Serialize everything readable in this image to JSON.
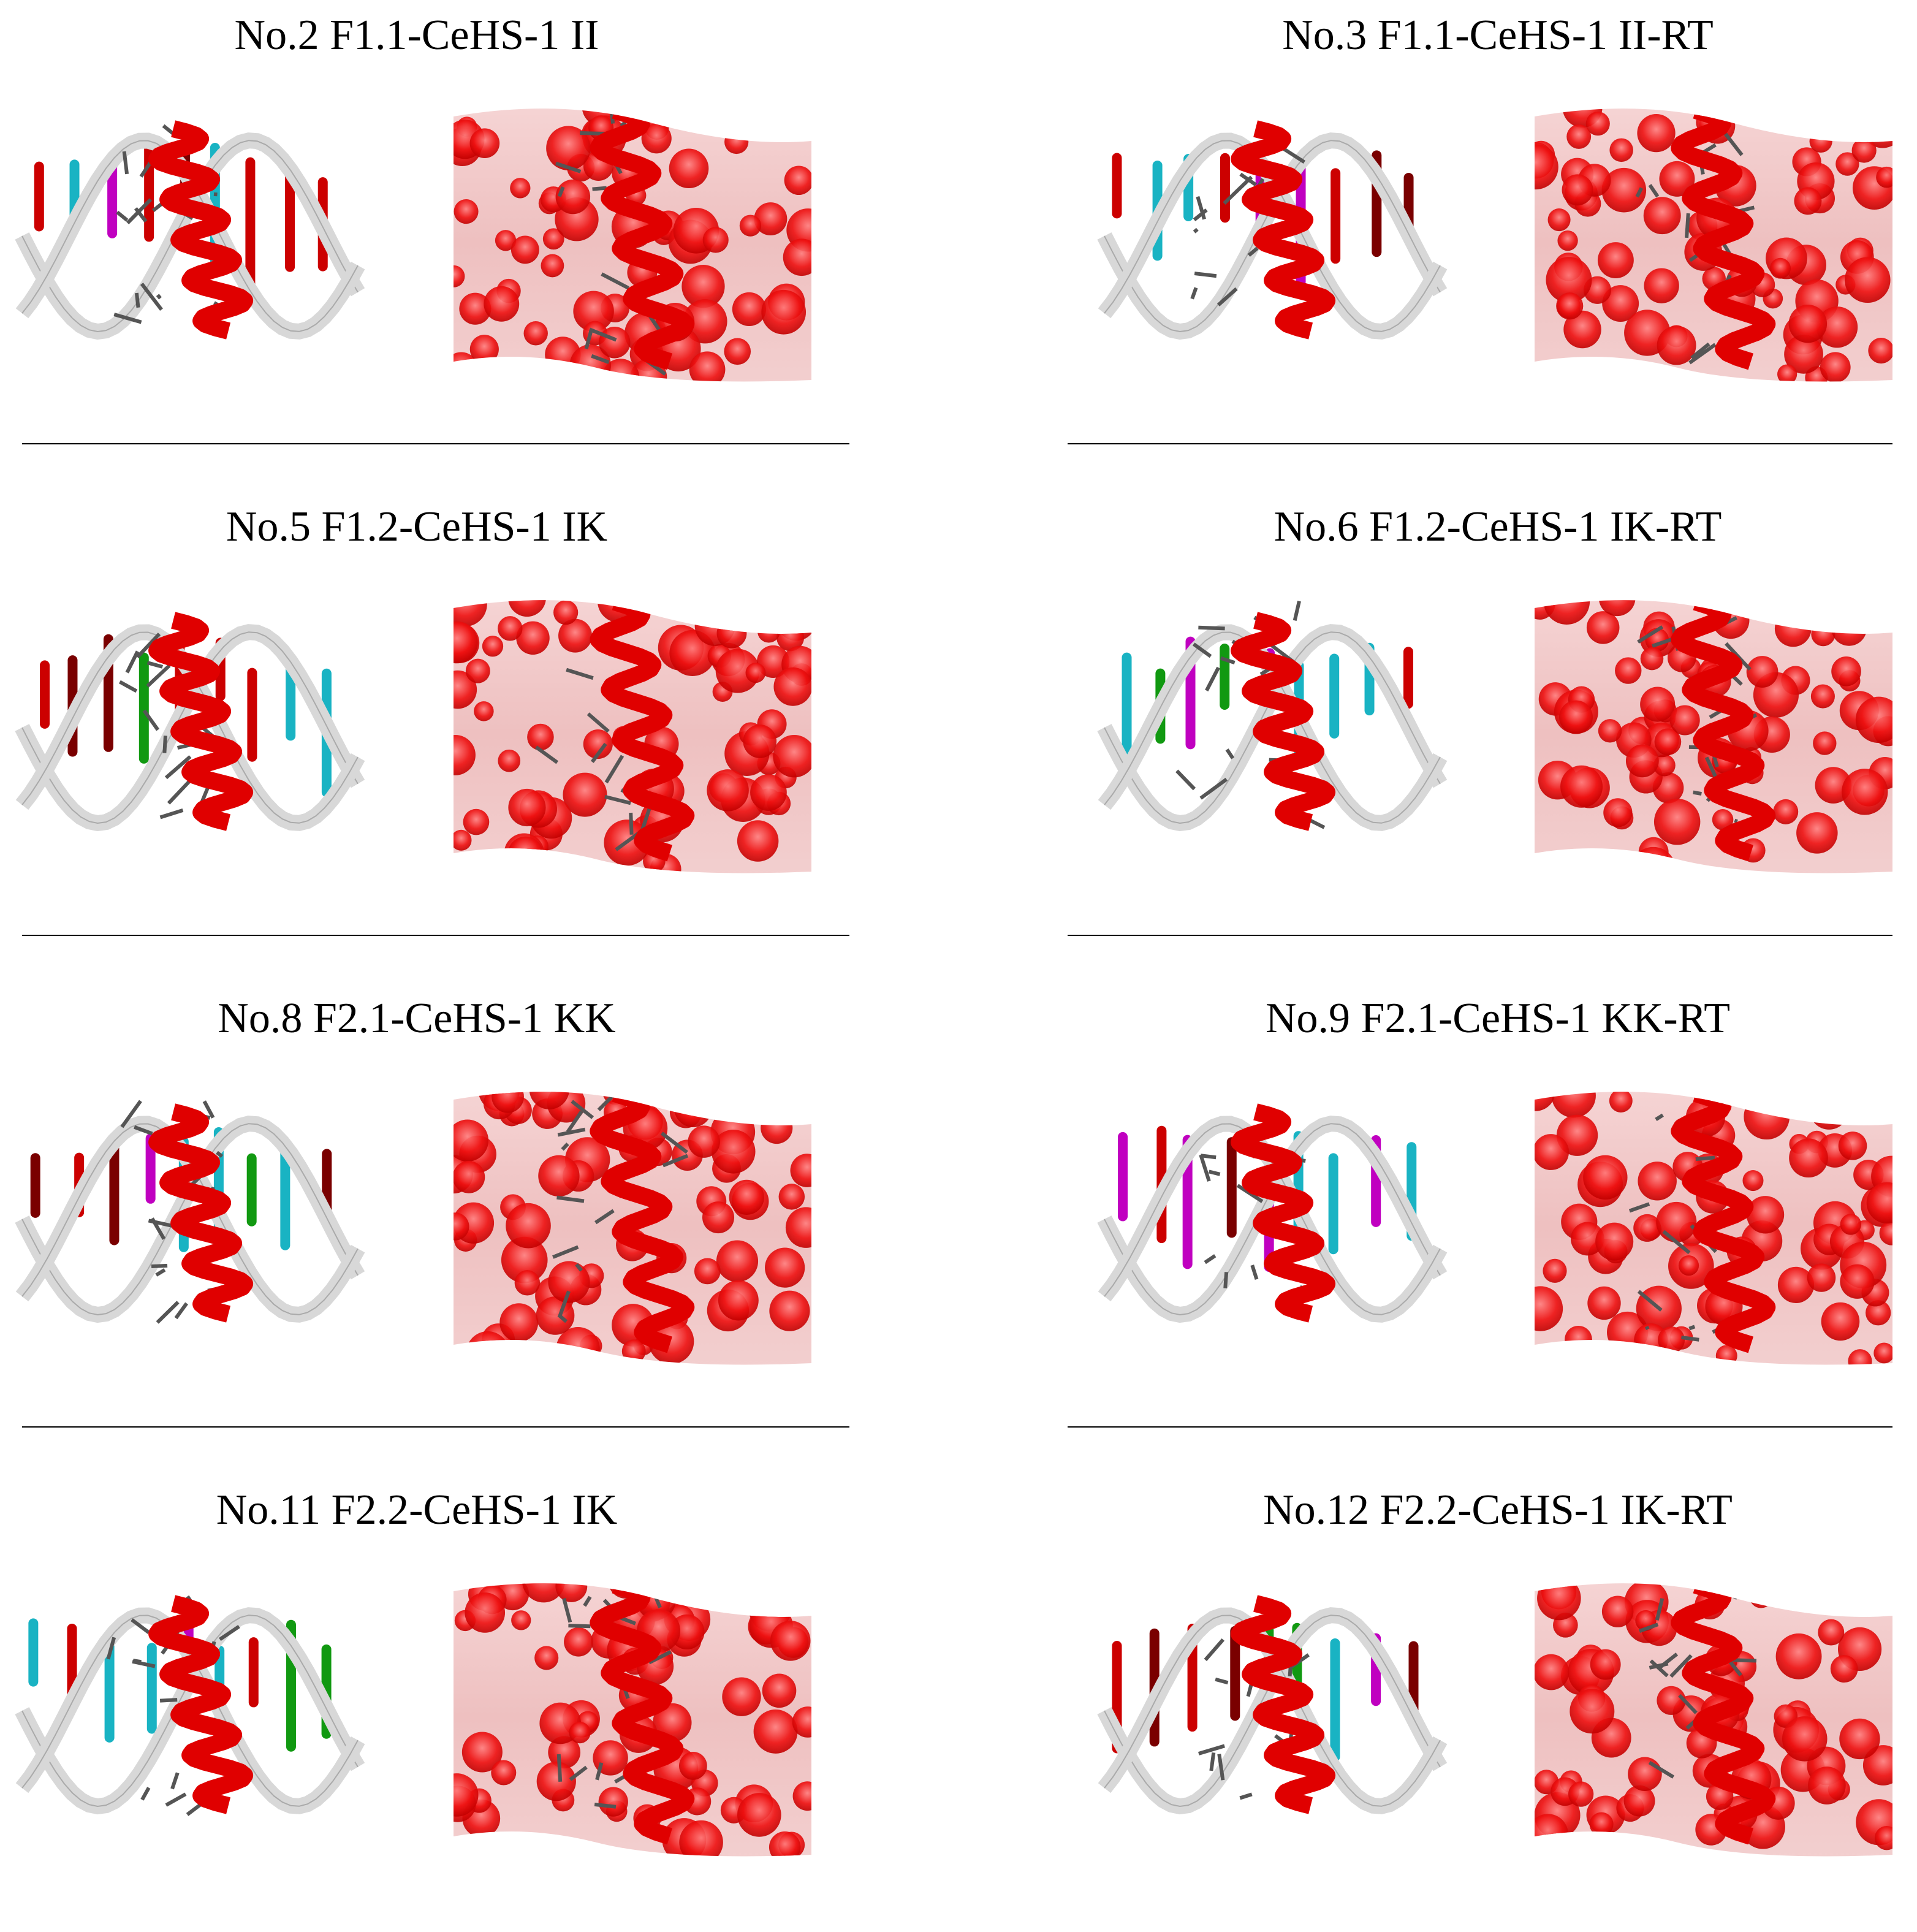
{
  "panels": [
    {
      "title": "No.2 F1.1-CeHS-1 II"
    },
    {
      "title": "No.3 F1.1-CeHS-1 II-RT"
    },
    {
      "title": "No.5 F1.2-CeHS-1 IK"
    },
    {
      "title": "No.6 F1.2-CeHS-1 IK-RT"
    },
    {
      "title": "No.8 F2.1-CeHS-1 KK"
    },
    {
      "title": "No.9 F2.1-CeHS-1 KK-RT"
    },
    {
      "title": "No.11 F2.2-CeHS-1 IK"
    },
    {
      "title": "No.12 F2.2-CeHS-1 IK-RT"
    }
  ]
}
